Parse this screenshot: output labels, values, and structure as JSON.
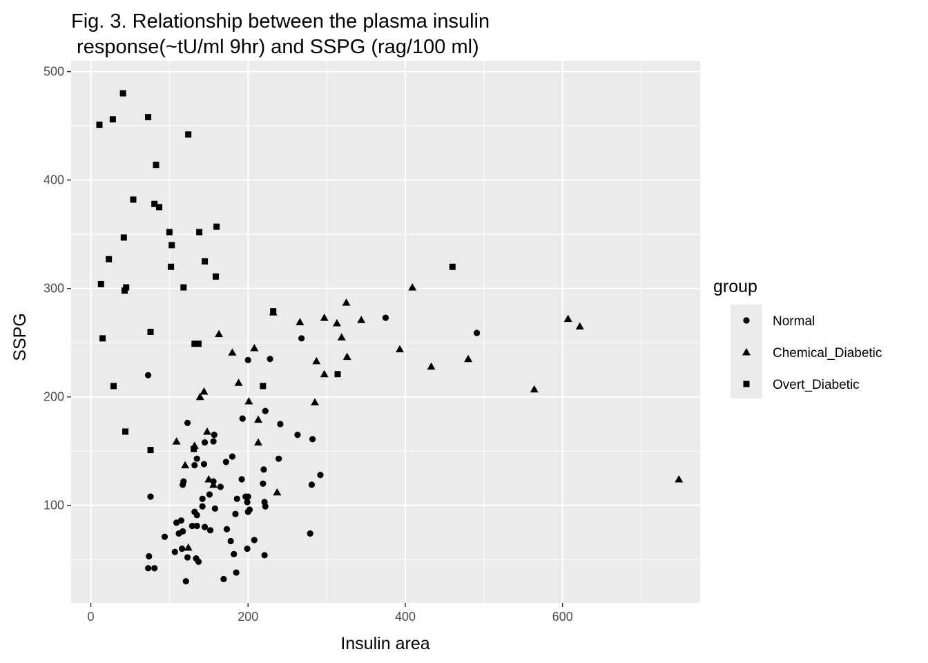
{
  "chart_data": {
    "type": "scatter",
    "title": [
      "Fig. 3. Relationship between the plasma insulin",
      " response(~tU/ml 9hr) and SSPG (rag/100 ml)"
    ],
    "xlabel": "Insulin area",
    "ylabel": "SSPG",
    "xlim": [
      -25,
      775
    ],
    "ylim": [
      10,
      510
    ],
    "xticks": [
      0,
      200,
      400,
      600
    ],
    "yticks": [
      100,
      200,
      300,
      400,
      500
    ],
    "grid": true,
    "legend": {
      "title": "group",
      "placement": "right",
      "entries": [
        "Normal",
        "Chemical_Diabetic",
        "Overt_Diabetic"
      ]
    },
    "colors": {
      "panel": "#ebebeb",
      "grid": "#ffffff",
      "point": "#000000"
    },
    "series": [
      {
        "name": "Normal",
        "shape": "circle",
        "points": [
          [
            375,
            273
          ],
          [
            491,
            259
          ],
          [
            268,
            254
          ],
          [
            228,
            235
          ],
          [
            200,
            234
          ],
          [
            73,
            220
          ],
          [
            193,
            180
          ],
          [
            222,
            187
          ],
          [
            241,
            175
          ],
          [
            123,
            176
          ],
          [
            263,
            165
          ],
          [
            157,
            165
          ],
          [
            156,
            159
          ],
          [
            145,
            158
          ],
          [
            282,
            161
          ],
          [
            180,
            145
          ],
          [
            172,
            140
          ],
          [
            135,
            143
          ],
          [
            144,
            138
          ],
          [
            132,
            137
          ],
          [
            239,
            143
          ],
          [
            220,
            133
          ],
          [
            118,
            122
          ],
          [
            117,
            119
          ],
          [
            156,
            122
          ],
          [
            165,
            117
          ],
          [
            192,
            124
          ],
          [
            292,
            128
          ],
          [
            281,
            119
          ],
          [
            219,
            120
          ],
          [
            76,
            108
          ],
          [
            151,
            110
          ],
          [
            186,
            106
          ],
          [
            197,
            108
          ],
          [
            200,
            108
          ],
          [
            142,
            106
          ],
          [
            221,
            103
          ],
          [
            199,
            103
          ],
          [
            142,
            99
          ],
          [
            202,
            96
          ],
          [
            222,
            99
          ],
          [
            158,
            97
          ],
          [
            132,
            94
          ],
          [
            135,
            91
          ],
          [
            184,
            92
          ],
          [
            200,
            94
          ],
          [
            115,
            86
          ],
          [
            109,
            84
          ],
          [
            152,
            77
          ],
          [
            145,
            80
          ],
          [
            129,
            81
          ],
          [
            135,
            81
          ],
          [
            173,
            78
          ],
          [
            117,
            76
          ],
          [
            112,
            74
          ],
          [
            94,
            71
          ],
          [
            279,
            74
          ],
          [
            208,
            68
          ],
          [
            178,
            67
          ],
          [
            116,
            60
          ],
          [
            199,
            60
          ],
          [
            107,
            57
          ],
          [
            182,
            55
          ],
          [
            221,
            54
          ],
          [
            123,
            52
          ],
          [
            74,
            53
          ],
          [
            134,
            51
          ],
          [
            137,
            48
          ],
          [
            73,
            42
          ],
          [
            81,
            42
          ],
          [
            185,
            38
          ],
          [
            169,
            32
          ],
          [
            121,
            30
          ]
        ]
      },
      {
        "name": "Chemical_Diabetic",
        "shape": "triangle",
        "points": [
          [
            409,
            301
          ],
          [
            325,
            287
          ],
          [
            622,
            265
          ],
          [
            607,
            272
          ],
          [
            266,
            269
          ],
          [
            297,
            273
          ],
          [
            313,
            268
          ],
          [
            344,
            271
          ],
          [
            232,
            278
          ],
          [
            393,
            244
          ],
          [
            319,
            255
          ],
          [
            163,
            258
          ],
          [
            208,
            245
          ],
          [
            180,
            241
          ],
          [
            287,
            233
          ],
          [
            326,
            237
          ],
          [
            433,
            228
          ],
          [
            480,
            235
          ],
          [
            297,
            221
          ],
          [
            564,
            207
          ],
          [
            188,
            213
          ],
          [
            144,
            205
          ],
          [
            139,
            200
          ],
          [
            201,
            196
          ],
          [
            285,
            195
          ],
          [
            213,
            179
          ],
          [
            213,
            158
          ],
          [
            109,
            159
          ],
          [
            148,
            168
          ],
          [
            132,
            155
          ],
          [
            120,
            137
          ],
          [
            150,
            124
          ],
          [
            156,
            119
          ],
          [
            237,
            112
          ],
          [
            748,
            124
          ],
          [
            124,
            61
          ]
        ]
      },
      {
        "name": "Overt_Diabetic",
        "shape": "square",
        "points": [
          [
            11,
            451
          ],
          [
            41,
            480
          ],
          [
            28,
            456
          ],
          [
            73,
            458
          ],
          [
            124,
            442
          ],
          [
            83,
            414
          ],
          [
            54,
            382
          ],
          [
            81,
            378
          ],
          [
            87,
            375
          ],
          [
            100,
            352
          ],
          [
            138,
            352
          ],
          [
            160,
            357
          ],
          [
            103,
            340
          ],
          [
            42,
            347
          ],
          [
            23,
            327
          ],
          [
            102,
            320
          ],
          [
            145,
            325
          ],
          [
            159,
            311
          ],
          [
            13,
            304
          ],
          [
            45,
            301
          ],
          [
            43,
            298
          ],
          [
            118,
            301
          ],
          [
            460,
            320
          ],
          [
            232,
            279
          ],
          [
            15,
            254
          ],
          [
            76,
            260
          ],
          [
            132,
            249
          ],
          [
            137,
            249
          ],
          [
            29,
            210
          ],
          [
            219,
            210
          ],
          [
            314,
            221
          ],
          [
            44,
            168
          ],
          [
            76,
            151
          ],
          [
            131,
            152
          ]
        ]
      }
    ]
  }
}
